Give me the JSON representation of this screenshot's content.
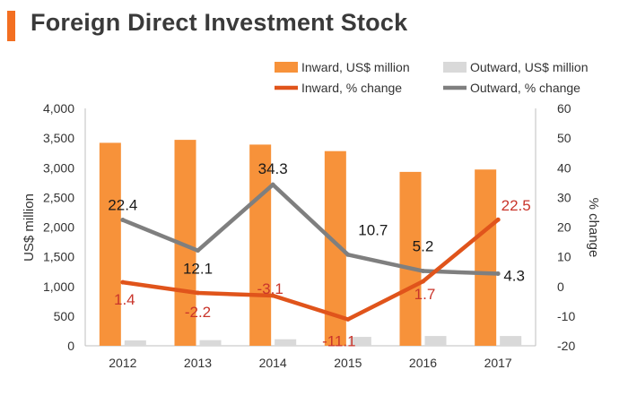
{
  "title": "Foreign Direct Investment Stock",
  "colors": {
    "accent": "#F36F21",
    "inward_bar": "#F7923A",
    "outward_bar": "#D9D9D9",
    "inward_line": "#E0541B",
    "outward_line": "#7F7F7F",
    "inward_label": "#C9352B",
    "outward_label": "#1A1A1A",
    "axis": "#BFBFBF"
  },
  "chart_data": {
    "type": "bar",
    "categories": [
      "2012",
      "2013",
      "2014",
      "2015",
      "2016",
      "2017"
    ],
    "series": [
      {
        "name": "Inward, US$ million",
        "kind": "bar",
        "axis": "left",
        "values": [
          3420,
          3470,
          3390,
          3280,
          2930,
          2970
        ]
      },
      {
        "name": "Outward, US$ million",
        "kind": "bar",
        "axis": "left",
        "values": [
          90,
          95,
          110,
          150,
          165,
          165
        ]
      },
      {
        "name": "Inward, % change",
        "kind": "line",
        "axis": "right",
        "values": [
          1.4,
          -2.2,
          -3.1,
          -11.1,
          1.7,
          22.5
        ],
        "labels": [
          "1.4",
          "-2.2",
          "-3.1",
          "-11.1",
          "1.7",
          "22.5"
        ]
      },
      {
        "name": "Outward, % change",
        "kind": "line",
        "axis": "right",
        "values": [
          22.4,
          12.1,
          34.3,
          10.7,
          5.2,
          4.3
        ],
        "labels": [
          "22.4",
          "12.1",
          "34.3",
          "10.7",
          "5.2",
          "4.3"
        ]
      }
    ],
    "ylabel": "US$ million",
    "y2label": "% change",
    "ylim": [
      0,
      4000
    ],
    "y2lim": [
      -20,
      60
    ],
    "yticks": [
      "0",
      "500",
      "1,000",
      "1,500",
      "2,000",
      "2,500",
      "3,000",
      "3,500",
      "4,000"
    ],
    "y2ticks": [
      "-20",
      "-10",
      "0",
      "10",
      "20",
      "30",
      "40",
      "50",
      "60"
    ],
    "legend_position": "top"
  }
}
